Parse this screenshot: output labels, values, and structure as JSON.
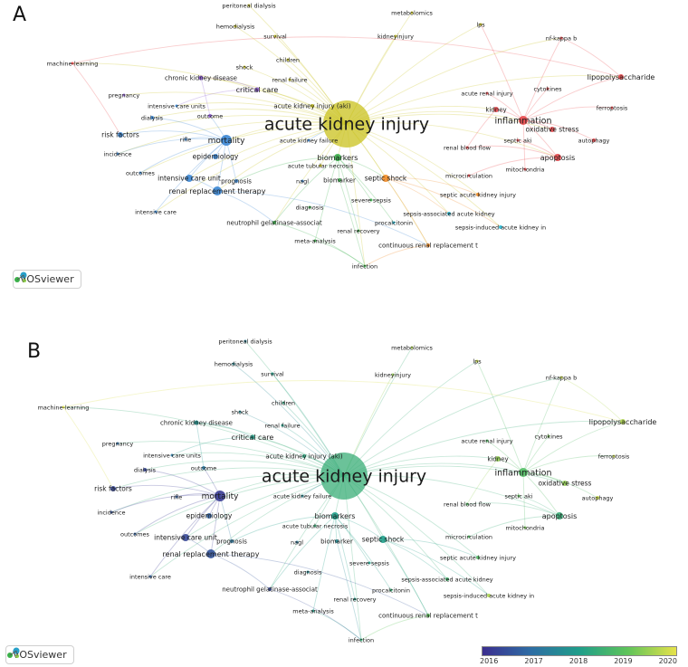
{
  "panels": {
    "a": {
      "label": "A",
      "branding": "VOSviewer"
    },
    "b": {
      "label": "B",
      "branding": "VOSviewer"
    }
  },
  "colors": {
    "red": "#e8474a",
    "orange": "#f08a24",
    "yellow": "#c9c21e",
    "green": "#3bb04a",
    "cyan": "#27b9d6",
    "blue": "#3a86d4",
    "purple": "#8a5ad0",
    "overlay_old": "#3b2e8f",
    "overlay_new": "#e6e24a"
  },
  "overlay_scale": {
    "ticks": [
      "2016",
      "2017",
      "2018",
      "2019",
      "2020"
    ]
  },
  "keywords": [
    "peritoneal dialysis",
    "metabolomics",
    "hemodialysis",
    "lps",
    "survival",
    "kidneyinjury",
    "nf-kappa b",
    "children",
    "machine-learning",
    "shock",
    "chronic kidney disease",
    "renal failure",
    "lipopolysaccharide",
    "pregnancy",
    "critical care",
    "acute renal injury",
    "cytokines",
    "intensive care units",
    "acute kidney injury (aki)",
    "dialysis",
    "outcome",
    "kidney",
    "ferroptosis",
    "acute kidney injury",
    "inflammation",
    "risk factors",
    "oxidative stress",
    "mortality",
    "acute kidney failure",
    "septic aki",
    "autophagy",
    "rifle",
    "renal blood flow",
    "incidence",
    "epidemiology",
    "biomarkers",
    "apoptosis",
    "mitochondria",
    "acute tubular necrosis",
    "outcomes",
    "intensive care unit",
    "microcirculation",
    "prognosis",
    "biomarker",
    "septic shock",
    "nagl",
    "renal replacement therapy",
    "septic acute kidney injury",
    "severe sepsis",
    "intensive care",
    "diagnosis",
    "sepsis-associated acute kidney",
    "neutrophil gelatinase-associat",
    "procalcitonin",
    "sepsis-induced acute kidney in",
    "renal recovery",
    "continuous renal replacement t",
    "meta-analysis",
    "infection"
  ]
}
